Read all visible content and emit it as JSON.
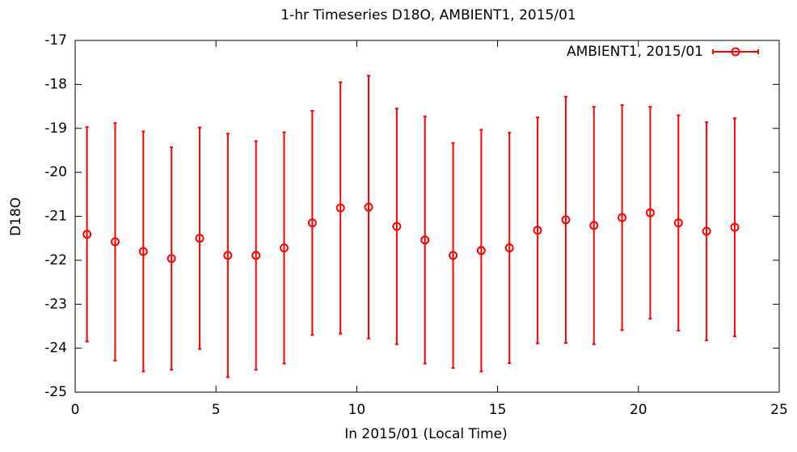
{
  "chart_data": {
    "type": "errorbar",
    "title": "1-hr Timeseries D18O, AMBIENT1, 2015/01",
    "x_label": "In 2015/01 (Local Time)",
    "y_label": "D18O",
    "xlim": [
      0,
      25
    ],
    "xticks": [
      0,
      5,
      10,
      15,
      20,
      25
    ],
    "ylim": [
      -25,
      -17
    ],
    "yticks": [
      -25,
      -24,
      -23,
      -22,
      -21,
      -20,
      -19,
      -18,
      -17
    ],
    "legend": "top-right",
    "series": [
      {
        "name": "AMBIENT1, 2015/01",
        "color": "#ff0000",
        "x": [
          0.42,
          1.42,
          2.42,
          3.42,
          4.42,
          5.42,
          6.42,
          7.42,
          8.42,
          9.42,
          10.42,
          11.42,
          12.42,
          13.42,
          14.42,
          15.42,
          16.42,
          17.42,
          18.42,
          19.42,
          20.42,
          21.42,
          22.42,
          23.42
        ],
        "values": [
          -21.41,
          -21.58,
          -21.8,
          -21.96,
          -21.5,
          -21.89,
          -21.89,
          -21.72,
          -21.15,
          -20.81,
          -20.79,
          -21.23,
          -21.54,
          -21.89,
          -21.78,
          -21.72,
          -21.32,
          -21.08,
          -21.21,
          -21.03,
          -20.92,
          -21.15,
          -21.34,
          -21.25
        ],
        "errors": [
          2.44,
          2.7,
          2.73,
          2.53,
          2.52,
          2.77,
          2.6,
          2.63,
          2.55,
          2.86,
          2.99,
          2.68,
          2.81,
          2.56,
          2.75,
          2.62,
          2.57,
          2.8,
          2.7,
          2.56,
          2.41,
          2.45,
          2.48,
          2.48
        ]
      }
    ]
  }
}
